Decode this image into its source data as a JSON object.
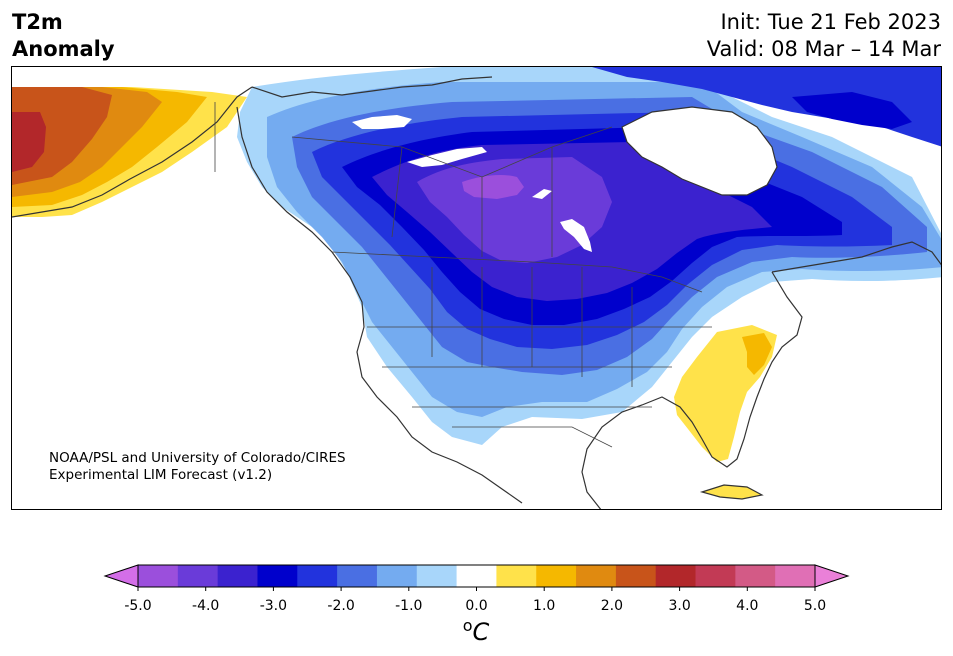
{
  "header": {
    "title_line1": "T2m",
    "title_line2": "Anomaly",
    "init": "Init: Tue 21 Feb 2023",
    "valid": "Valid: 08 Mar – 14 Mar"
  },
  "map": {
    "credit_line1": "NOAA/PSL and University of Colorado/CIRES",
    "credit_line2": "Experimental LIM Forecast (v1.2)",
    "region": "North America",
    "variable": "2m temperature anomaly"
  },
  "colorbar": {
    "unit_symbol": "o",
    "unit_letter": "C",
    "min": -5.0,
    "max": 5.0,
    "extend": "both",
    "tick_labels": [
      "-5.0",
      "-4.0",
      "-3.0",
      "-2.0",
      "-1.0",
      "0.0",
      "1.0",
      "2.0",
      "3.0",
      "4.0",
      "5.0"
    ],
    "colors": [
      "#d36ee8",
      "#9b4fdc",
      "#6a3bd9",
      "#3b22cf",
      "#0000cc",
      "#2233dd",
      "#4a6fe3",
      "#74abf0",
      "#a8d6fa",
      "#ffffff",
      "#ffe24a",
      "#f5b800",
      "#e08a10",
      "#c8541a",
      "#b2272a",
      "#c23a55",
      "#d35a86",
      "#e06fb5",
      "#ea80d8"
    ]
  }
}
